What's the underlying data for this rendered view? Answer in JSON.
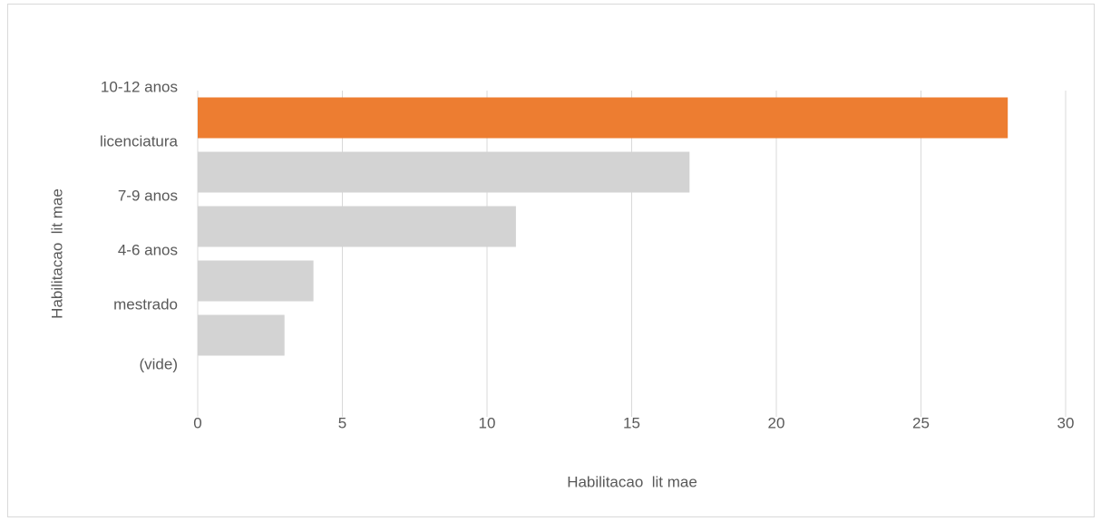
{
  "chart_data": {
    "type": "barh",
    "categories": [
      "10-12 anos",
      "licenciatura",
      "7-9 anos",
      "4-6 anos",
      "mestrado",
      "(vide)"
    ],
    "values": [
      28,
      17,
      11,
      4,
      3,
      null
    ],
    "colors": [
      "#ed7d31",
      "#d3d3d3",
      "#d3d3d3",
      "#d3d3d3",
      "#d3d3d3",
      "#d3d3d3"
    ],
    "xlabel": "Habilitacao  lit mae",
    "ylabel": "Habilitacao  lit mae",
    "xlim": [
      0,
      30
    ],
    "xticks": [
      0,
      5,
      10,
      15,
      20,
      25,
      30
    ],
    "grid": true
  }
}
